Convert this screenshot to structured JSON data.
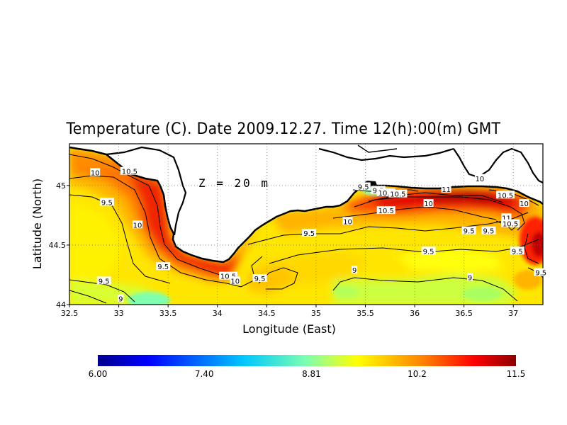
{
  "title": "Temperature (C). Date 2009.12.27. Time 12(h):00(m) GMT",
  "depth_label": "Z = 20 m",
  "chart_data": {
    "type": "heatmap",
    "variable": "Temperature",
    "unit": "C",
    "date": "2009.12.27",
    "time": "12(h):00(m) GMT",
    "depth_label": "Z = 20 m",
    "xlabel": "Longitude (East)",
    "ylabel": "Latitude (North)",
    "xlim": [
      32.5,
      37.3
    ],
    "ylim": [
      44.0,
      45.35
    ],
    "x_ticks": [
      "32.5",
      "33",
      "33.5",
      "34",
      "34.5",
      "35",
      "35.5",
      "36",
      "36.5",
      "37"
    ],
    "y_ticks": [
      "44",
      "44.5",
      "45"
    ],
    "grid": true,
    "colorbar": {
      "min": 6.0,
      "max": 11.5,
      "tick_labels": [
        "6.00",
        "7.40",
        "8.81",
        "10.2",
        "11.5"
      ],
      "colormap": [
        "#00008b",
        "#0000ff",
        "#00c8ff",
        "#7fffaf",
        "#ffff00",
        "#ff8000",
        "#ff0000",
        "#8b0000"
      ]
    },
    "contour_labels": [
      {
        "text": "10",
        "lon": 32.76,
        "lat": 45.11
      },
      {
        "text": "10.5",
        "lon": 33.11,
        "lat": 45.12
      },
      {
        "text": "9.5",
        "lon": 32.88,
        "lat": 44.86
      },
      {
        "text": "10",
        "lon": 33.19,
        "lat": 44.67
      },
      {
        "text": "9.5",
        "lon": 33.45,
        "lat": 44.32
      },
      {
        "text": "9.5",
        "lon": 32.85,
        "lat": 44.2
      },
      {
        "text": "9",
        "lon": 33.02,
        "lat": 44.05
      },
      {
        "text": "10.5",
        "lon": 34.11,
        "lat": 44.24
      },
      {
        "text": "10",
        "lon": 34.18,
        "lat": 44.2
      },
      {
        "text": "9.5",
        "lon": 34.43,
        "lat": 44.22
      },
      {
        "text": "9.5",
        "lon": 34.93,
        "lat": 44.6
      },
      {
        "text": "9.5",
        "lon": 35.48,
        "lat": 44.99
      },
      {
        "text": "9.5",
        "lon": 35.63,
        "lat": 44.96
      },
      {
        "text": "10.5",
        "lon": 35.71,
        "lat": 44.94
      },
      {
        "text": "10.5",
        "lon": 35.83,
        "lat": 44.93
      },
      {
        "text": "10.5",
        "lon": 35.71,
        "lat": 44.79
      },
      {
        "text": "10",
        "lon": 35.32,
        "lat": 44.7
      },
      {
        "text": "11",
        "lon": 36.32,
        "lat": 44.97
      },
      {
        "text": "10",
        "lon": 36.14,
        "lat": 44.85
      },
      {
        "text": "10",
        "lon": 36.66,
        "lat": 45.06
      },
      {
        "text": "10.5",
        "lon": 36.92,
        "lat": 44.92
      },
      {
        "text": "10",
        "lon": 37.11,
        "lat": 44.85
      },
      {
        "text": "11",
        "lon": 36.93,
        "lat": 44.73
      },
      {
        "text": "10.5",
        "lon": 36.97,
        "lat": 44.68
      },
      {
        "text": "9.5",
        "lon": 36.75,
        "lat": 44.62
      },
      {
        "text": "9.5",
        "lon": 36.55,
        "lat": 44.62
      },
      {
        "text": "9.5",
        "lon": 36.14,
        "lat": 44.45
      },
      {
        "text": "9.5",
        "lon": 37.04,
        "lat": 44.45
      },
      {
        "text": "9",
        "lon": 35.39,
        "lat": 44.29
      },
      {
        "text": "9",
        "lon": 36.56,
        "lat": 44.23
      },
      {
        "text": "9.5",
        "lon": 37.28,
        "lat": 44.27
      }
    ]
  }
}
